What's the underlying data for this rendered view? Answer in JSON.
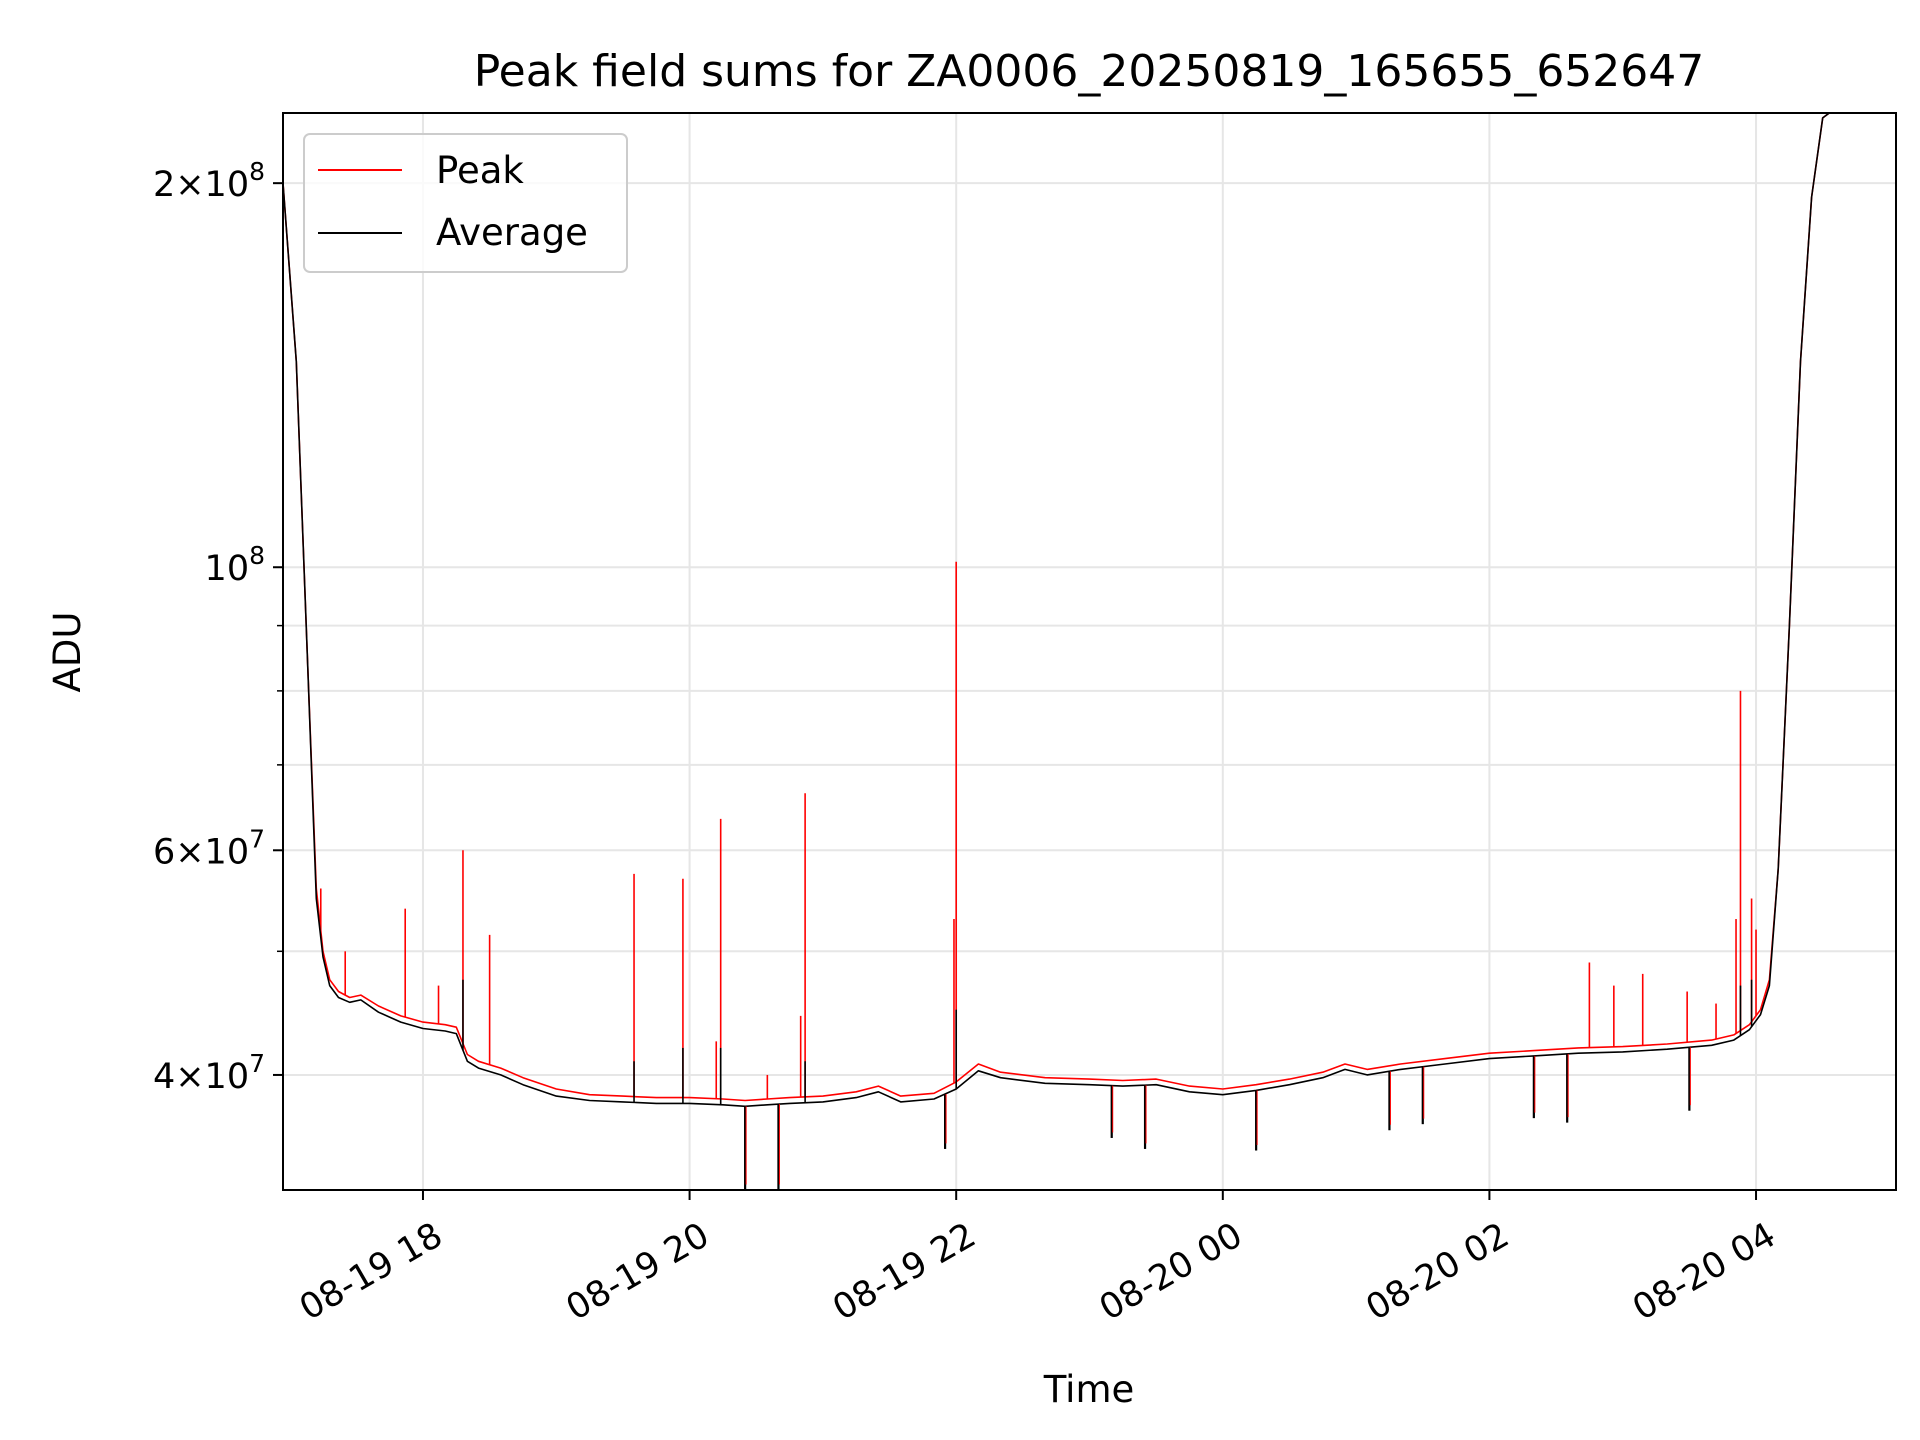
{
  "chart_data": {
    "type": "line",
    "title": "Peak field sums for ZA0006_20250819_165655_652647",
    "xlabel": "Time",
    "ylabel": "ADU",
    "yscale": "log",
    "grid": true,
    "legend_position": "top-left",
    "xlim": [
      "2025-08-19 16:57",
      "2025-08-20 05:03"
    ],
    "ylim": [
      32500000,
      227000000
    ],
    "x_ticks": [
      {
        "value": "2025-08-19 18:00",
        "label": "08-19 18"
      },
      {
        "value": "2025-08-19 20:00",
        "label": "08-19 20"
      },
      {
        "value": "2025-08-19 22:00",
        "label": "08-19 22"
      },
      {
        "value": "2025-08-20 00:00",
        "label": "08-20 00"
      },
      {
        "value": "2025-08-20 02:00",
        "label": "08-20 02"
      },
      {
        "value": "2025-08-20 04:00",
        "label": "08-20 04"
      }
    ],
    "y_ticks": [
      {
        "value": 40000000,
        "base": "4",
        "exp": "7"
      },
      {
        "value": 60000000,
        "base": "6",
        "exp": "7"
      },
      {
        "value": 100000000,
        "base": "",
        "exp": "8"
      },
      {
        "value": 200000000,
        "base": "2",
        "exp": "8"
      }
    ],
    "y_minor_ticks": [
      50000000,
      70000000,
      80000000,
      90000000
    ],
    "series": [
      {
        "name": "Peak",
        "color": "#ff0000",
        "x": [
          "2025-08-19 16:57",
          "2025-08-19 17:03",
          "2025-08-19 17:08",
          "2025-08-19 17:12",
          "2025-08-19 17:15",
          "2025-08-19 17:18",
          "2025-08-19 17:22",
          "2025-08-19 17:27",
          "2025-08-19 17:32",
          "2025-08-19 17:40",
          "2025-08-19 17:50",
          "2025-08-19 18:00",
          "2025-08-19 18:10",
          "2025-08-19 18:15",
          "2025-08-19 18:20",
          "2025-08-19 18:25",
          "2025-08-19 18:35",
          "2025-08-19 18:45",
          "2025-08-19 19:00",
          "2025-08-19 19:15",
          "2025-08-19 19:30",
          "2025-08-19 19:45",
          "2025-08-19 20:00",
          "2025-08-19 20:15",
          "2025-08-19 20:25",
          "2025-08-19 20:35",
          "2025-08-19 20:45",
          "2025-08-19 21:00",
          "2025-08-19 21:15",
          "2025-08-19 21:25",
          "2025-08-19 21:35",
          "2025-08-19 21:50",
          "2025-08-19 22:00",
          "2025-08-19 22:10",
          "2025-08-19 22:20",
          "2025-08-19 22:40",
          "2025-08-19 23:00",
          "2025-08-19 23:15",
          "2025-08-19 23:30",
          "2025-08-19 23:45",
          "2025-08-20 00:00",
          "2025-08-20 00:15",
          "2025-08-20 00:30",
          "2025-08-20 00:45",
          "2025-08-20 00:55",
          "2025-08-20 01:05",
          "2025-08-20 01:20",
          "2025-08-20 01:40",
          "2025-08-20 02:00",
          "2025-08-20 02:20",
          "2025-08-20 02:40",
          "2025-08-20 03:00",
          "2025-08-20 03:20",
          "2025-08-20 03:40",
          "2025-08-20 03:50",
          "2025-08-20 03:57",
          "2025-08-20 04:02",
          "2025-08-20 04:06",
          "2025-08-20 04:10",
          "2025-08-20 04:15",
          "2025-08-20 04:20",
          "2025-08-20 04:25",
          "2025-08-20 04:30",
          "2025-08-20 04:33"
        ],
        "y": [
          200000000,
          145000000,
          85000000,
          56000000,
          50000000,
          47500000,
          46500000,
          46000000,
          46200000,
          45300000,
          44500000,
          44000000,
          43800000,
          43600000,
          41500000,
          41000000,
          40500000,
          39800000,
          39000000,
          38600000,
          38500000,
          38400000,
          38400000,
          38300000,
          38200000,
          38300000,
          38400000,
          38500000,
          38800000,
          39200000,
          38500000,
          38700000,
          39500000,
          40800000,
          40200000,
          39800000,
          39700000,
          39600000,
          39700000,
          39200000,
          39000000,
          39300000,
          39700000,
          40200000,
          40800000,
          40400000,
          40800000,
          41200000,
          41600000,
          41800000,
          42000000,
          42100000,
          42300000,
          42600000,
          43000000,
          43800000,
          45000000,
          47500000,
          58000000,
          90000000,
          145000000,
          195000000,
          225000000,
          227000000
        ],
        "spikes": [
          {
            "x": "2025-08-19 17:10",
            "y": 69000000
          },
          {
            "x": "2025-08-19 17:14",
            "y": 56000000
          },
          {
            "x": "2025-08-19 17:25",
            "y": 50000000
          },
          {
            "x": "2025-08-19 17:52",
            "y": 54000000
          },
          {
            "x": "2025-08-19 18:07",
            "y": 47000000
          },
          {
            "x": "2025-08-19 18:18",
            "y": 60000000
          },
          {
            "x": "2025-08-19 18:30",
            "y": 51500000
          },
          {
            "x": "2025-08-19 19:35",
            "y": 57500000
          },
          {
            "x": "2025-08-19 19:57",
            "y": 57000000
          },
          {
            "x": "2025-08-19 20:12",
            "y": 42500000
          },
          {
            "x": "2025-08-19 20:14",
            "y": 63500000
          },
          {
            "x": "2025-08-19 20:35",
            "y": 40000000
          },
          {
            "x": "2025-08-19 20:50",
            "y": 44500000
          },
          {
            "x": "2025-08-19 20:52",
            "y": 66500000
          },
          {
            "x": "2025-08-19 21:59",
            "y": 53000000
          },
          {
            "x": "2025-08-19 22:00",
            "y": 101000000
          },
          {
            "x": "2025-08-20 02:45",
            "y": 49000000
          },
          {
            "x": "2025-08-20 02:56",
            "y": 47000000
          },
          {
            "x": "2025-08-20 03:09",
            "y": 48000000
          },
          {
            "x": "2025-08-20 03:29",
            "y": 46500000
          },
          {
            "x": "2025-08-20 03:42",
            "y": 45500000
          },
          {
            "x": "2025-08-20 03:51",
            "y": 53000000
          },
          {
            "x": "2025-08-20 03:53",
            "y": 80000000
          },
          {
            "x": "2025-08-20 03:58",
            "y": 55000000
          },
          {
            "x": "2025-08-20 04:00",
            "y": 52000000
          }
        ]
      },
      {
        "name": "Average",
        "color": "#000000",
        "x": [
          "2025-08-19 16:57",
          "2025-08-19 17:03",
          "2025-08-19 17:08",
          "2025-08-19 17:12",
          "2025-08-19 17:15",
          "2025-08-19 17:18",
          "2025-08-19 17:22",
          "2025-08-19 17:27",
          "2025-08-19 17:32",
          "2025-08-19 17:40",
          "2025-08-19 17:50",
          "2025-08-19 18:00",
          "2025-08-19 18:10",
          "2025-08-19 18:15",
          "2025-08-19 18:20",
          "2025-08-19 18:25",
          "2025-08-19 18:35",
          "2025-08-19 18:45",
          "2025-08-19 19:00",
          "2025-08-19 19:15",
          "2025-08-19 19:30",
          "2025-08-19 19:45",
          "2025-08-19 20:00",
          "2025-08-19 20:15",
          "2025-08-19 20:25",
          "2025-08-19 20:35",
          "2025-08-19 20:45",
          "2025-08-19 21:00",
          "2025-08-19 21:15",
          "2025-08-19 21:25",
          "2025-08-19 21:35",
          "2025-08-19 21:50",
          "2025-08-19 22:00",
          "2025-08-19 22:10",
          "2025-08-19 22:20",
          "2025-08-19 22:40",
          "2025-08-19 23:00",
          "2025-08-19 23:15",
          "2025-08-19 23:30",
          "2025-08-19 23:45",
          "2025-08-20 00:00",
          "2025-08-20 00:15",
          "2025-08-20 00:30",
          "2025-08-20 00:45",
          "2025-08-20 00:55",
          "2025-08-20 01:05",
          "2025-08-20 01:20",
          "2025-08-20 01:40",
          "2025-08-20 02:00",
          "2025-08-20 02:20",
          "2025-08-20 02:40",
          "2025-08-20 03:00",
          "2025-08-20 03:20",
          "2025-08-20 03:40",
          "2025-08-20 03:50",
          "2025-08-20 03:57",
          "2025-08-20 04:02",
          "2025-08-20 04:06",
          "2025-08-20 04:10",
          "2025-08-20 04:15",
          "2025-08-20 04:20",
          "2025-08-20 04:25",
          "2025-08-20 04:30",
          "2025-08-20 04:33"
        ],
        "y": [
          200000000,
          145000000,
          85000000,
          55000000,
          49500000,
          47000000,
          46000000,
          45600000,
          45800000,
          44800000,
          44000000,
          43500000,
          43300000,
          43100000,
          41000000,
          40500000,
          40000000,
          39300000,
          38500000,
          38200000,
          38100000,
          38000000,
          38000000,
          37900000,
          37800000,
          37900000,
          38000000,
          38100000,
          38400000,
          38800000,
          38100000,
          38300000,
          39000000,
          40300000,
          39800000,
          39400000,
          39300000,
          39200000,
          39300000,
          38800000,
          38600000,
          38900000,
          39300000,
          39800000,
          40400000,
          40000000,
          40400000,
          40800000,
          41200000,
          41400000,
          41600000,
          41700000,
          41900000,
          42200000,
          42600000,
          43400000,
          44600000,
          47000000,
          58000000,
          90000000,
          145000000,
          195000000,
          225000000,
          227000000
        ],
        "dips": [
          {
            "x": "2025-08-19 20:25",
            "y": 32500000
          },
          {
            "x": "2025-08-19 20:40",
            "y": 32500000
          },
          {
            "x": "2025-08-19 21:55",
            "y": 35000000
          },
          {
            "x": "2025-08-19 23:10",
            "y": 35700000
          },
          {
            "x": "2025-08-19 23:25",
            "y": 35000000
          },
          {
            "x": "2025-08-20 00:15",
            "y": 34900000
          },
          {
            "x": "2025-08-20 01:15",
            "y": 36200000
          },
          {
            "x": "2025-08-20 01:30",
            "y": 36600000
          },
          {
            "x": "2025-08-20 02:20",
            "y": 37000000
          },
          {
            "x": "2025-08-20 02:35",
            "y": 36700000
          },
          {
            "x": "2025-08-20 03:30",
            "y": 37500000
          }
        ],
        "spikes": [
          {
            "x": "2025-08-19 18:18",
            "y": 47500000
          },
          {
            "x": "2025-08-19 19:35",
            "y": 41000000
          },
          {
            "x": "2025-08-19 19:57",
            "y": 42000000
          },
          {
            "x": "2025-08-19 20:14",
            "y": 42000000
          },
          {
            "x": "2025-08-19 20:52",
            "y": 41000000
          },
          {
            "x": "2025-08-19 22:00",
            "y": 45000000
          },
          {
            "x": "2025-08-20 03:53",
            "y": 47000000
          },
          {
            "x": "2025-08-20 03:58",
            "y": 47500000
          }
        ]
      }
    ]
  }
}
